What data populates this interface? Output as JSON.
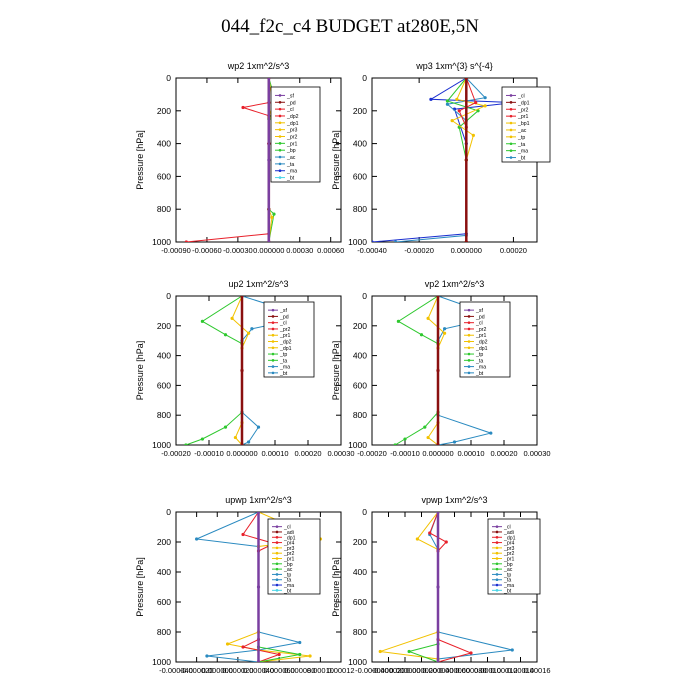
{
  "title": "044_f2c_c4  BUDGET at280E,5N",
  "chart_data": [
    {
      "type": "line",
      "title": "wp2   1xm^2/s^3",
      "ylabel": "Pressure [hPa]",
      "ylim": [
        1000,
        0
      ],
      "y_ticks": [
        0,
        200,
        400,
        600,
        800,
        1000
      ],
      "xlim": [
        -0.0009,
        0.0007
      ],
      "x_ticks": [
        -0.0009,
        -0.0006,
        -0.0003,
        0.0,
        0.0003,
        0.0006
      ],
      "x_tick_labels": [
        "-0.00090",
        "-0.00060",
        "-0.00030",
        "0.000000",
        "0.00030",
        "0.00060"
      ],
      "legend": [
        "_sf",
        "_pd",
        "_cl",
        "_dp2",
        "_dp1",
        "_pr3",
        "_pr2",
        "_pr1",
        "_bp",
        "_ac",
        "_ta",
        "_ma",
        "_bt"
      ],
      "series": [
        {
          "color": "#e8202a",
          "x": [
            0,
            0,
            -0.00025,
            0,
            0,
            0,
            0,
            -0.0008
          ],
          "y": [
            0,
            150,
            180,
            230,
            400,
            800,
            950,
            1000
          ]
        },
        {
          "color": "#2ec82e",
          "x": [
            0,
            8e-05,
            0,
            0,
            5e-05,
            0
          ],
          "y": [
            0,
            170,
            250,
            800,
            830,
            1000
          ]
        },
        {
          "color": "#f2c200",
          "x": [
            0,
            4e-05,
            0,
            0,
            3e-05,
            0
          ],
          "y": [
            0,
            160,
            240,
            800,
            850,
            1000
          ]
        },
        {
          "color": "#8a1010",
          "x": [
            0,
            0,
            0,
            0
          ],
          "y": [
            0,
            400,
            800,
            1000
          ]
        },
        {
          "color": "#7a3fa0",
          "x": [
            0,
            0,
            0
          ],
          "y": [
            0,
            500,
            1000
          ]
        }
      ]
    },
    {
      "type": "line",
      "title": "wp3   1xm^{3} s^{-4}",
      "ylabel": "Pressure [hPa]",
      "ylim": [
        1000,
        0
      ],
      "y_ticks": [
        0,
        200,
        400,
        600,
        800,
        1000
      ],
      "xlim": [
        -0.0004,
        0.0003
      ],
      "x_ticks": [
        -0.0004,
        -0.0002,
        0.0,
        0.0002
      ],
      "x_tick_labels": [
        "-0.00040",
        "-0.00020",
        "0.000000",
        "0.00020"
      ],
      "legend": [
        "_cl",
        "_dp1",
        "_pr2",
        "_pr1",
        "_bp1",
        "_ac",
        "_tp",
        "_ta",
        "_ma",
        "_bt"
      ],
      "series": [
        {
          "color": "#1a2fd0",
          "x": [
            0,
            -0.00015,
            0.0002,
            -5e-05,
            0,
            0,
            -0.0004
          ],
          "y": [
            0,
            130,
            150,
            190,
            400,
            950,
            1000
          ]
        },
        {
          "color": "#2a8ac0",
          "x": [
            0,
            8e-05,
            -8e-05,
            0,
            0,
            -0.0003
          ],
          "y": [
            0,
            120,
            160,
            260,
            960,
            1000
          ]
        },
        {
          "color": "#2ec82e",
          "x": [
            0,
            -8e-05,
            5e-05,
            -3e-05,
            0,
            0
          ],
          "y": [
            0,
            140,
            200,
            300,
            500,
            1000
          ]
        },
        {
          "color": "#f2c200",
          "x": [
            0,
            -4e-05,
            8e-05,
            -6e-05,
            3e-05,
            0,
            0
          ],
          "y": [
            0,
            130,
            170,
            260,
            350,
            500,
            1000
          ]
        },
        {
          "color": "#e8202a",
          "x": [
            0,
            4e-05,
            -3e-05,
            0,
            0
          ],
          "y": [
            0,
            150,
            200,
            300,
            1000
          ]
        },
        {
          "color": "#8a1010",
          "x": [
            0,
            0,
            0
          ],
          "y": [
            0,
            500,
            1000
          ]
        }
      ]
    },
    {
      "type": "line",
      "title": "up2   1xm^2/s^3",
      "ylabel": "Pressure [hPa]",
      "ylim": [
        1000,
        0
      ],
      "y_ticks": [
        0,
        200,
        400,
        600,
        800,
        1000
      ],
      "xlim": [
        -0.0002,
        0.0003
      ],
      "x_ticks": [
        -0.0002,
        -0.0001,
        0.0,
        0.0001,
        0.0002,
        0.0003
      ],
      "x_tick_labels": [
        "-0.00020",
        "-0.00010",
        "0.000000",
        "0.00010",
        "0.00020",
        "0.00030"
      ],
      "legend": [
        "_sf",
        "_pd",
        "_cl",
        "_pr2",
        "_pr1",
        "_dp2",
        "_dp1",
        "_tp",
        "_ta",
        "_ma",
        "_bt"
      ],
      "series": [
        {
          "color": "#2ec82e",
          "x": [
            0,
            -0.00012,
            -5e-05,
            0,
            0,
            -5e-05,
            -0.00012,
            -0.00017
          ],
          "y": [
            0,
            170,
            260,
            320,
            780,
            880,
            960,
            1000
          ]
        },
        {
          "color": "#2a8ac0",
          "x": [
            0,
            0.0002,
            3e-05,
            0,
            0,
            5e-05,
            2e-05,
            0
          ],
          "y": [
            0,
            140,
            220,
            300,
            780,
            880,
            980,
            1000
          ]
        },
        {
          "color": "#f2c200",
          "x": [
            0,
            -3e-05,
            2e-05,
            0,
            0,
            -2e-05,
            0
          ],
          "y": [
            0,
            150,
            250,
            350,
            850,
            950,
            1000
          ]
        },
        {
          "color": "#e8202a",
          "x": [
            0,
            0,
            0
          ],
          "y": [
            0,
            500,
            1000
          ]
        },
        {
          "color": "#8a1010",
          "x": [
            0,
            0,
            0
          ],
          "y": [
            0,
            500,
            1000
          ]
        }
      ]
    },
    {
      "type": "line",
      "title": "vp2   1xm^2/s^3",
      "ylabel": "Pressure [hPa]",
      "ylim": [
        1000,
        0
      ],
      "y_ticks": [
        0,
        200,
        400,
        600,
        800,
        1000
      ],
      "xlim": [
        -0.0002,
        0.0003
      ],
      "x_ticks": [
        -0.0002,
        -0.0001,
        0.0,
        0.0001,
        0.0002,
        0.0003
      ],
      "x_tick_labels": [
        "-0.00020",
        "-0.00010",
        "0.000000",
        "0.00010",
        "0.00020",
        "0.00030"
      ],
      "legend": [
        "_sf",
        "_pd",
        "_cl",
        "_pr2",
        "_pr1",
        "_dp2",
        "_dp1",
        "_tp",
        "_ta",
        "_ma",
        "_bt"
      ],
      "series": [
        {
          "color": "#2ec82e",
          "x": [
            0,
            -0.00012,
            -5e-05,
            0,
            0,
            -4e-05,
            -0.0001,
            -0.00013
          ],
          "y": [
            0,
            170,
            260,
            320,
            780,
            880,
            960,
            1000
          ]
        },
        {
          "color": "#2a8ac0",
          "x": [
            0,
            0.00018,
            2e-05,
            0,
            0,
            0.00016,
            5e-05,
            0
          ],
          "y": [
            0,
            140,
            220,
            300,
            800,
            920,
            980,
            1000
          ]
        },
        {
          "color": "#f2c200",
          "x": [
            0,
            -3e-05,
            2e-05,
            0,
            0,
            -3e-05,
            0
          ],
          "y": [
            0,
            150,
            250,
            350,
            850,
            950,
            1000
          ]
        },
        {
          "color": "#e8202a",
          "x": [
            0,
            0,
            0
          ],
          "y": [
            0,
            500,
            1000
          ]
        },
        {
          "color": "#8a1010",
          "x": [
            0,
            0,
            0
          ],
          "y": [
            0,
            500,
            1000
          ]
        }
      ]
    },
    {
      "type": "line",
      "title": "upwp   1xm^2/s^3",
      "ylabel": "Pressure [hPa]",
      "ylim": [
        1000,
        0
      ],
      "y_ticks": [
        0,
        200,
        400,
        600,
        800,
        1000
      ],
      "xlim": [
        -4e-05,
        0.00012
      ],
      "x_ticks": [
        -4e-05,
        -2e-05,
        0.0,
        2e-05,
        4e-05,
        6e-05,
        8e-05,
        0.0001,
        0.00012
      ],
      "x_tick_labels": [
        "-0.000040",
        "-0.000020",
        "0.000000",
        "0.000020",
        "0.000040",
        "0.000060",
        "0.000080",
        "0.00010",
        "0.00012"
      ],
      "legend": [
        "_cl",
        "_adi",
        "_dp1",
        "_pr4",
        "_pr3",
        "_pr2",
        "_pr1",
        "_bp",
        "_ac",
        "_tp",
        "_ta",
        "_ma",
        "_bt"
      ],
      "series": [
        {
          "color": "#2a8ac0",
          "x": [
            4e-05,
            -2e-05,
            4e-05,
            4e-05,
            8e-05,
            4e-05,
            -1e-05,
            4e-05
          ],
          "y": [
            0,
            180,
            230,
            800,
            870,
            920,
            960,
            1000
          ]
        },
        {
          "color": "#f2c200",
          "x": [
            4e-05,
            0.0001,
            4e-05,
            4e-05,
            1e-05,
            4e-05,
            9e-05,
            4e-05
          ],
          "y": [
            0,
            180,
            230,
            800,
            880,
            920,
            960,
            1000
          ]
        },
        {
          "color": "#e8202a",
          "x": [
            4e-05,
            2.5e-05,
            5.5e-05,
            4e-05,
            4e-05,
            2.5e-05,
            6e-05,
            4e-05
          ],
          "y": [
            0,
            150,
            210,
            260,
            850,
            900,
            950,
            1000
          ]
        },
        {
          "color": "#2ec82e",
          "x": [
            4e-05,
            4e-05,
            8e-05,
            4e-05
          ],
          "y": [
            0,
            900,
            950,
            1000
          ]
        },
        {
          "color": "#7a3fa0",
          "x": [
            4e-05,
            4e-05,
            4e-05
          ],
          "y": [
            0,
            500,
            1000
          ]
        }
      ]
    },
    {
      "type": "line",
      "title": "vpwp   1xm^2/s^3",
      "ylabel": "Pressure [hPa]",
      "ylim": [
        1000,
        0
      ],
      "y_ticks": [
        0,
        200,
        400,
        600,
        800,
        1000
      ],
      "xlim": [
        -4e-05,
        0.00016
      ],
      "x_ticks": [
        -4e-05,
        -2e-05,
        0.0,
        2e-05,
        4e-05,
        6e-05,
        8e-05,
        0.0001,
        0.00012,
        0.00014,
        0.00016
      ],
      "x_tick_labels": [
        "-0.000040",
        "-0.000020",
        "0.000000",
        "0.000020",
        "0.000040",
        "0.000060",
        "0.000080",
        "0.00010",
        "0.00012",
        "0.00014",
        "0.00016"
      ],
      "legend": [
        "_cl",
        "_adi",
        "_dp1",
        "_pr4",
        "_pr3",
        "_pr2",
        "_pr1",
        "_bp",
        "_ac",
        "_tp",
        "_ta",
        "_ma",
        "_bt"
      ],
      "series": [
        {
          "color": "#2a8ac0",
          "x": [
            4e-05,
            3e-05,
            4e-05,
            4e-05,
            0.00013,
            4e-05,
            4e-05
          ],
          "y": [
            0,
            150,
            250,
            800,
            920,
            980,
            1000
          ]
        },
        {
          "color": "#f2c200",
          "x": [
            4e-05,
            1.5e-05,
            4e-05,
            4e-05,
            -3e-05,
            4e-05,
            4e-05
          ],
          "y": [
            0,
            180,
            250,
            800,
            930,
            980,
            1000
          ]
        },
        {
          "color": "#e8202a",
          "x": [
            4e-05,
            3e-05,
            5e-05,
            4e-05,
            4e-05,
            8e-05,
            4e-05
          ],
          "y": [
            0,
            140,
            200,
            260,
            850,
            940,
            1000
          ]
        },
        {
          "color": "#2ec82e",
          "x": [
            4e-05,
            4e-05,
            5e-06,
            4e-05
          ],
          "y": [
            0,
            880,
            930,
            1000
          ]
        },
        {
          "color": "#7a3fa0",
          "x": [
            4e-05,
            4e-05,
            4e-05
          ],
          "y": [
            0,
            500,
            1000
          ]
        }
      ]
    }
  ]
}
